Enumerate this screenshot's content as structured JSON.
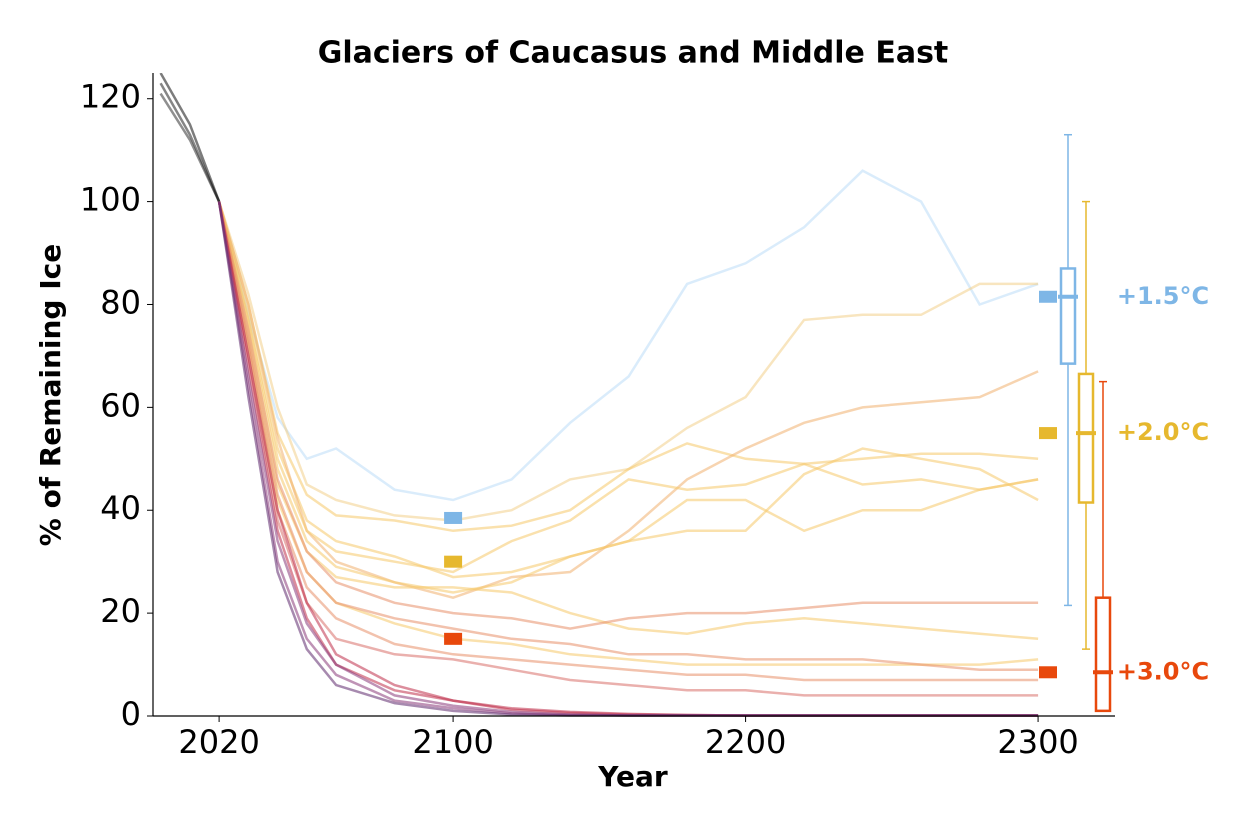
{
  "chart_data": {
    "type": "line",
    "title": "Glaciers of Caucasus and Middle East",
    "x_label": "Year",
    "y_label": "% of Remaining Ice",
    "x": [
      2000,
      2010,
      2020,
      2030,
      2040,
      2050,
      2060,
      2080,
      2100,
      2120,
      2140,
      2160,
      2180,
      2200,
      2220,
      2240,
      2260,
      2280,
      2300
    ],
    "xlim": [
      1997.4,
      2326.3
    ],
    "ylim": [
      0,
      125
    ],
    "xticks": [
      2020,
      2100,
      2200,
      2300
    ],
    "yticks": [
      0,
      20,
      40,
      60,
      80,
      100,
      120
    ],
    "series": [
      {
        "color": "#222222",
        "values": [
          123,
          113,
          100,
          null,
          null,
          null,
          null,
          null,
          null,
          null,
          null,
          null,
          null,
          null,
          null,
          null,
          null,
          null,
          null
        ]
      },
      {
        "color": "#333333",
        "values": [
          121,
          112,
          100,
          null,
          null,
          null,
          null,
          null,
          null,
          null,
          null,
          null,
          null,
          null,
          null,
          null,
          null,
          null,
          null
        ]
      },
      {
        "color": "#111111",
        "values": [
          125,
          115,
          100,
          null,
          null,
          null,
          null,
          null,
          null,
          null,
          null,
          null,
          null,
          null,
          null,
          null,
          null,
          null,
          null
        ]
      },
      {
        "color": "#bcdcf7",
        "values": [
          null,
          null,
          100,
          78,
          58,
          50,
          52,
          44,
          42,
          46,
          57,
          66,
          84,
          88,
          95,
          106,
          100,
          80,
          84
        ]
      },
      {
        "color": "#f2d08a",
        "values": [
          null,
          null,
          100,
          82,
          60,
          45,
          42,
          39,
          38,
          40,
          46,
          48,
          56,
          62,
          77,
          78,
          78,
          84,
          84
        ]
      },
      {
        "color": "#f5c86a",
        "values": [
          null,
          null,
          100,
          80,
          55,
          43,
          39,
          38,
          36,
          37,
          40,
          48,
          53,
          50,
          49,
          50,
          51,
          51,
          50
        ]
      },
      {
        "color": "#f5c86a",
        "values": [
          null,
          null,
          100,
          78,
          52,
          38,
          34,
          31,
          27,
          28,
          31,
          34,
          42,
          42,
          36,
          40,
          40,
          44,
          46
        ]
      },
      {
        "color": "#f0b070",
        "values": [
          null,
          null,
          100,
          80,
          54,
          36,
          30,
          26,
          23,
          27,
          28,
          36,
          46,
          52,
          57,
          60,
          61,
          62,
          67
        ]
      },
      {
        "color": "#f5c86a",
        "values": [
          null,
          null,
          100,
          76,
          48,
          34,
          29,
          26,
          24,
          26,
          31,
          34,
          36,
          36,
          47,
          52,
          50,
          48,
          42
        ]
      },
      {
        "color": "#f5c86a",
        "values": [
          null,
          null,
          100,
          77,
          50,
          36,
          32,
          30,
          28,
          34,
          38,
          46,
          44,
          45,
          49,
          45,
          46,
          44,
          46
        ]
      },
      {
        "color": "#f5c86a",
        "values": [
          null,
          null,
          100,
          74,
          45,
          32,
          27,
          25,
          25,
          24,
          20,
          17,
          16,
          18,
          19,
          18,
          17,
          16,
          15
        ]
      },
      {
        "color": "#f5c86a",
        "values": [
          null,
          null,
          100,
          72,
          42,
          28,
          22,
          18,
          15,
          14,
          12,
          11,
          10,
          10,
          10,
          10,
          10,
          10,
          11
        ]
      },
      {
        "color": "#e8906a",
        "values": [
          null,
          null,
          100,
          75,
          46,
          32,
          26,
          22,
          20,
          19,
          17,
          19,
          20,
          20,
          21,
          22,
          22,
          22,
          22
        ]
      },
      {
        "color": "#e8906a",
        "values": [
          null,
          null,
          100,
          73,
          43,
          28,
          22,
          19,
          17,
          15,
          14,
          12,
          12,
          11,
          11,
          11,
          10,
          9,
          9
        ]
      },
      {
        "color": "#e8906a",
        "values": [
          null,
          null,
          100,
          72,
          40,
          25,
          19,
          14,
          12,
          11,
          10,
          9,
          8,
          8,
          7,
          7,
          7,
          7,
          7
        ]
      },
      {
        "color": "#d9706a",
        "values": [
          null,
          null,
          100,
          70,
          38,
          22,
          15,
          12,
          11,
          9,
          7,
          6,
          5,
          5,
          4,
          4,
          4,
          4,
          4
        ]
      },
      {
        "color": "#c0304a",
        "values": [
          null,
          null,
          100,
          70,
          40,
          22,
          12,
          6,
          3,
          1.5,
          0.8,
          0.4,
          0.2,
          0.1,
          0.1,
          0.1,
          0.1,
          0.1,
          0.1
        ]
      },
      {
        "color": "#c0304a",
        "values": [
          null,
          null,
          100,
          68,
          36,
          19,
          10,
          5,
          3,
          1.2,
          0.6,
          0.3,
          0.2,
          0.1,
          0.1,
          0.1,
          0.1,
          0.1,
          0.1
        ]
      },
      {
        "color": "#8b3a7a",
        "values": [
          null,
          null,
          100,
          66,
          34,
          18,
          10,
          4,
          2,
          0.8,
          0.3,
          0.1,
          0.1,
          0.1,
          0.1,
          0.1,
          0.1,
          0.1,
          0.1
        ]
      },
      {
        "color": "#8b3a7a",
        "values": [
          null,
          null,
          100,
          64,
          30,
          15,
          8,
          3,
          1.5,
          0.5,
          0.2,
          0.1,
          0.1,
          0.1,
          0.1,
          0.1,
          0.1,
          0.1,
          0.1
        ]
      },
      {
        "color": "#5e2a6e",
        "values": [
          null,
          null,
          100,
          62,
          28,
          13,
          6,
          2.5,
          1,
          0.3,
          0.1,
          0.1,
          0.1,
          0.1,
          0.1,
          0.1,
          0.1,
          0.1,
          0.1
        ]
      }
    ],
    "scenarios": [
      {
        "label": "+1.5°C",
        "color": "#7eb6e6",
        "median_2100": 38.5,
        "whisker_low": 21.5,
        "q1": 68.5,
        "median": 81.5,
        "q3": 87,
        "whisker_high": 113
      },
      {
        "label": "+2.0°C",
        "color": "#e6b82e",
        "median_2100": 30,
        "whisker_low": 13,
        "q1": 41.5,
        "median": 55,
        "q3": 66.5,
        "whisker_high": 100
      },
      {
        "label": "+3.0°C",
        "color": "#e8480c",
        "median_2100": 15,
        "whisker_low": 1,
        "q1": 1,
        "median": 8.5,
        "q3": 23,
        "whisker_high": 65
      }
    ]
  }
}
